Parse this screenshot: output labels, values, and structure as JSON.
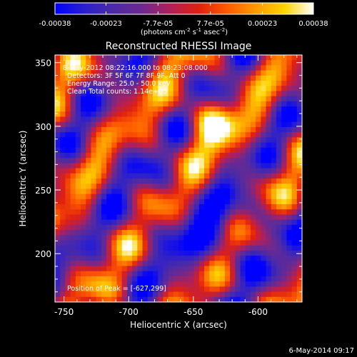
{
  "colorbar": {
    "ticks": [
      "-0.00038",
      "-0.00023",
      "-7.7e-05",
      "7.7e-05",
      "0.00023",
      "0.00038"
    ],
    "tick_values": [
      -0.00038,
      -0.00023,
      -7.7e-05,
      7.7e-05,
      0.00023,
      0.00038
    ],
    "range": [
      -0.00038,
      0.00038
    ],
    "unit": "(photons cm",
    "unit_sup1": "-2",
    "unit_mid": " s",
    "unit_sup2": "-1",
    "unit_mid2": " asec",
    "unit_sup3": "-2",
    "unit_end": ")",
    "colors": [
      "#0000ff",
      "#2a1fd0",
      "#4a2aa8",
      "#6a2a90",
      "#b0205a",
      "#e02010",
      "#ff5a00",
      "#ff9a00",
      "#ffd400",
      "#ffffff"
    ]
  },
  "chart_data": {
    "type": "heatmap",
    "title": "Reconstructed RHESSI Image",
    "xlabel": "Heliocentric X (arcsec)",
    "ylabel": "Heliocentric Y (arcsec)",
    "xlim": [
      -757,
      -566
    ],
    "ylim": [
      162,
      356
    ],
    "xticks": [
      -750,
      -700,
      -650,
      -600
    ],
    "yticks": [
      200,
      250,
      300,
      350
    ],
    "annotations": [
      "8-May-2012 08:22:16.000 to 08:23:08.000",
      "Detectors: 3F 5F 6F 7F 8F 9F, Att 0",
      "Energy Range: 25.0 - 50.0 keV",
      "Clean    Total counts: 1.14e+05",
      "Position of Peak = [-627,299]"
    ],
    "peak": {
      "x": -627,
      "y": 299
    }
  },
  "footer": {
    "date": "6-May-2014 09:17"
  }
}
